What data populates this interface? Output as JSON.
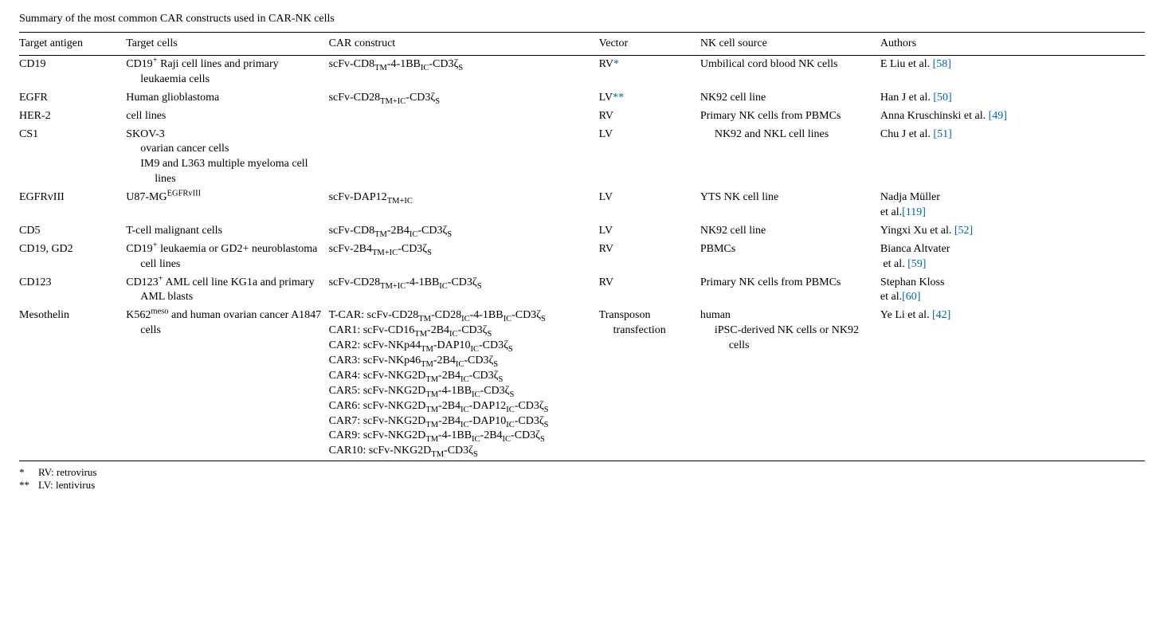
{
  "caption": "Summary of the most common CAR constructs used in CAR-NK cells",
  "columns": [
    "Target antigen",
    "Target cells",
    "CAR construct",
    "Vector",
    "NK cell source",
    "Authors"
  ],
  "link_color": "#0066aa",
  "footnotes": [
    {
      "mark": "*",
      "text": "RV: retrovirus"
    },
    {
      "mark": "**",
      "text": "LV: lentivirus"
    }
  ],
  "rows": [
    {
      "target_antigen": "CD19",
      "target_cells_html": "CD19<sup>+</sup> Raji cell lines and primary leukaemia cells",
      "car_html": "scFv-CD8<sub>TM</sub>-4-1BB<sub>IC</sub>-CD3ζ<sub>S</sub>",
      "vector_html": "RV<span class=\"link\">*</span>",
      "nk_source_html": "Umbilical cord blood NK cells",
      "authors_html": "E Liu et al. <span class=\"link\">[58]</span>"
    },
    {
      "target_antigen": "EGFR",
      "target_cells_html": "Human glioblastoma",
      "car_html": "scFv-CD28<sub>TM+IC</sub>-CD3ζ<sub>S</sub>",
      "vector_html": "LV<span class=\"link\">**</span>",
      "nk_source_html": "NK92 cell line",
      "authors_html": "Han J et al. <span class=\"link\">[50]</span>"
    },
    {
      "target_antigen": "HER-2",
      "target_cells_html": "cell lines",
      "car_html": "",
      "vector_html": "RV",
      "nk_source_html": "Primary NK cells from PBMCs",
      "authors_html": "Anna Kruschinski et al. <span class=\"link\">[49]</span>"
    },
    {
      "target_antigen": "CS1",
      "target_cells_html": "SKOV-3<br>ovarian cancer cells<br><span class=\"indent\">IM9 and L363 multiple myeloma cell lines</span>",
      "car_html": "",
      "vector_html": "LV",
      "nk_source_html": "<span class=\"indent-only\">NK92 and NKL cell lines</span>",
      "authors_html": "Chu J et al. <span class=\"link\">[51]</span>"
    },
    {
      "target_antigen": "EGFRvIII",
      "target_cells_html": "U87-MG<sup>EGFRvIII</sup>",
      "car_html": "scFv-DAP12<sub>TM+IC</sub>",
      "vector_html": "LV",
      "nk_source_html": "YTS NK cell line",
      "authors_html": "Nadja Müller<br>et al.<span class=\"link\">[119]</span>"
    },
    {
      "target_antigen": "CD5",
      "target_cells_html": "T-cell malignant cells",
      "car_html": "scFv-CD8<sub>TM</sub>-2B4<sub>IC</sub>-CD3ζ<sub>S</sub>",
      "vector_html": "LV",
      "nk_source_html": "NK92 cell line",
      "authors_html": "Yingxi Xu et al. <span class=\"link\">[52]</span>"
    },
    {
      "target_antigen": "CD19, GD2",
      "target_cells_html": "CD19<sup>+</sup> leukaemia or GD2+ neuroblastoma cell lines",
      "car_html": "scFv-2B4<sub>TM+IC</sub>-CD3ζ<sub>S</sub>",
      "vector_html": "RV",
      "nk_source_html": "PBMCs",
      "authors_html": "Bianca Altvater<br>&nbsp;et al. <span class=\"link\">[59]</span>"
    },
    {
      "target_antigen": "CD123",
      "target_cells_html": "CD123<sup>+</sup> AML cell line KG1a and primary AML blasts",
      "car_html": "scFv-CD28<sub>TM+IC</sub>-4-1BB<sub>IC</sub>-CD3ζ<sub>S</sub>",
      "vector_html": "RV",
      "nk_source_html": "Primary NK cells from PBMCs",
      "authors_html": "Stephan Kloss<br>et al.<span class=\"link\">[60]</span>"
    },
    {
      "target_antigen": "Mesothelin",
      "target_cells_html": "K562<sup>meso</sup> and human ovarian cancer A1847 cells",
      "car_html": "T-CAR: scFv-CD28<sub>TM</sub>-CD28<sub>IC</sub>-4-1BB<sub>IC</sub>-CD3ζ<sub>S</sub><br>CAR1: scFv-CD16<sub>TM</sub>-2B4<sub>IC</sub>-CD3ζ<sub>S</sub><br>CAR2: scFv-NKp44<sub>TM</sub>-DAP10<sub>IC</sub>-CD3ζ<sub>S</sub><br>CAR3: scFv-NKp46<sub>TM</sub>-2B4<sub>IC</sub>-CD3ζ<sub>S</sub><br>CAR4: scFv-NKG2D<sub>TM</sub>-2B4<sub>IC</sub>-CD3ζ<sub>S</sub><br>CAR5: scFv-NKG2D<sub>TM</sub>-4-1BB<sub>IC</sub>-CD3ζ<sub>S</sub><br>CAR6: scFv-NKG2D<sub>TM</sub>-2B4<sub>IC</sub>-DAP12<sub>IC</sub>-CD3ζ<sub>S</sub><br>CAR7: scFv-NKG2D<sub>TM</sub>-2B4<sub>IC</sub>-DAP10<sub>IC</sub>-CD3ζ<sub>S</sub><br>CAR9: scFv-NKG2D<sub>TM</sub>-4-1BB<sub>IC</sub>-2B4<sub>IC</sub>-CD3ζ<sub>S</sub><br>CAR10: scFv-NKG2D<sub>TM</sub>-CD3ζ<sub>S</sub>",
      "vector_html": "Transposon transfection",
      "nk_source_html": "human<br><span class=\"indent\">iPSC-derived NK cells or NK92 cells</span>",
      "authors_html": "Ye Li et al. <span class=\"link\">[42]</span>"
    }
  ]
}
